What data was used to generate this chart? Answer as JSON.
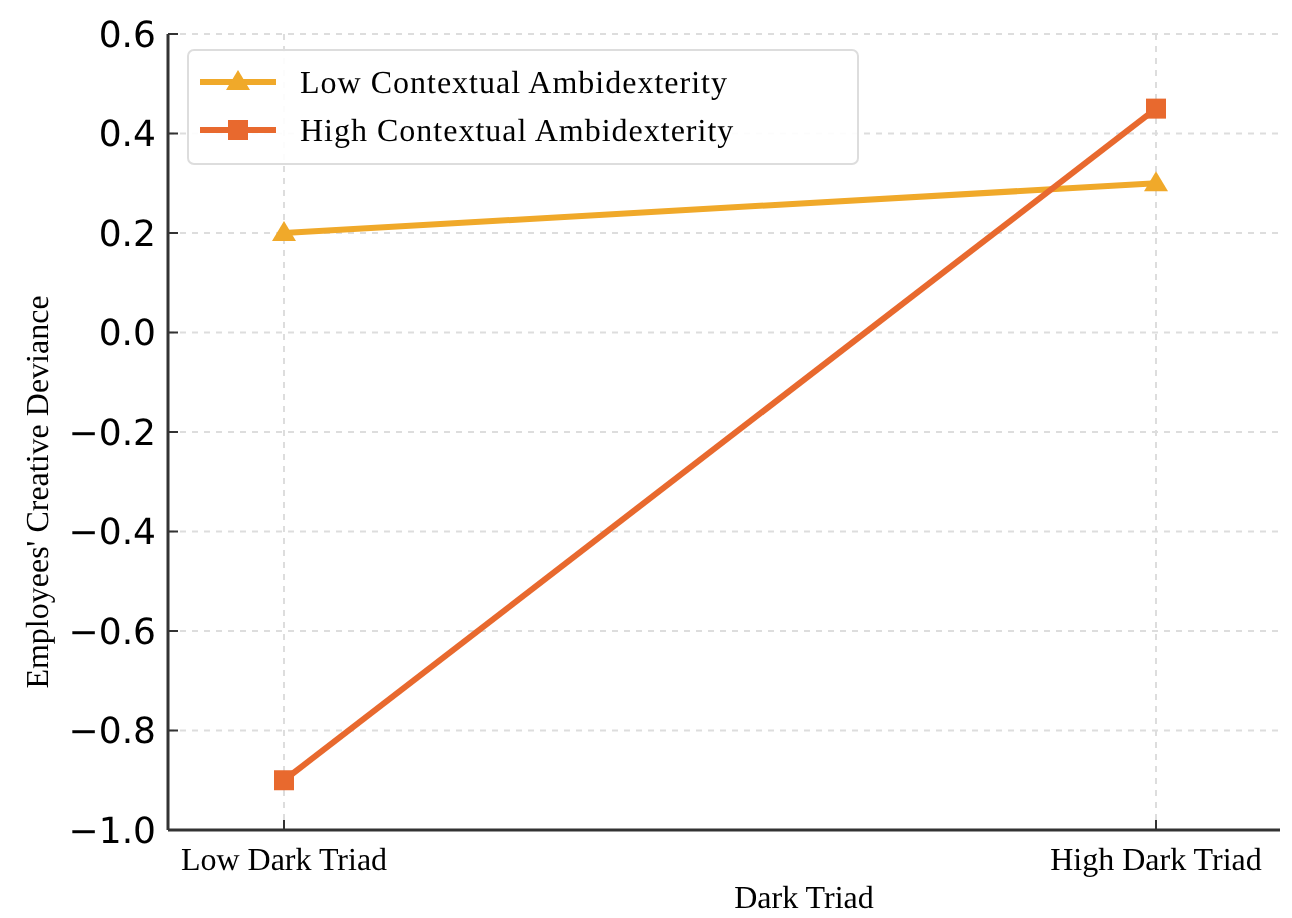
{
  "chart_data": {
    "type": "line",
    "xlabel": "Dark Triad",
    "ylabel": "Employees' Creative Deviance",
    "categories": [
      "Low Dark Triad",
      "High Dark Triad"
    ],
    "series": [
      {
        "name": "Low Contextual Ambidexterity",
        "color": "#f0a92a",
        "values": [
          0.2,
          0.3
        ],
        "marker": "triangle"
      },
      {
        "name": "High Contextual Ambidexterity",
        "color": "#e8692e",
        "values": [
          -0.9,
          0.45
        ],
        "marker": "square"
      }
    ],
    "ylim": [
      -1.0,
      0.6
    ],
    "yticks": [
      {
        "value": -1.0,
        "label": "−1.0"
      },
      {
        "value": -0.8,
        "label": "−0.8"
      },
      {
        "value": -0.6,
        "label": "−0.6"
      },
      {
        "value": -0.4,
        "label": "−0.4"
      },
      {
        "value": -0.2,
        "label": "−0.2"
      },
      {
        "value": 0.0,
        "label": "0.0"
      },
      {
        "value": 0.2,
        "label": "0.2"
      },
      {
        "value": 0.4,
        "label": "0.4"
      },
      {
        "value": 0.6,
        "label": "0.6"
      }
    ],
    "grid": true,
    "legend": "top left",
    "line_style": "solid"
  }
}
